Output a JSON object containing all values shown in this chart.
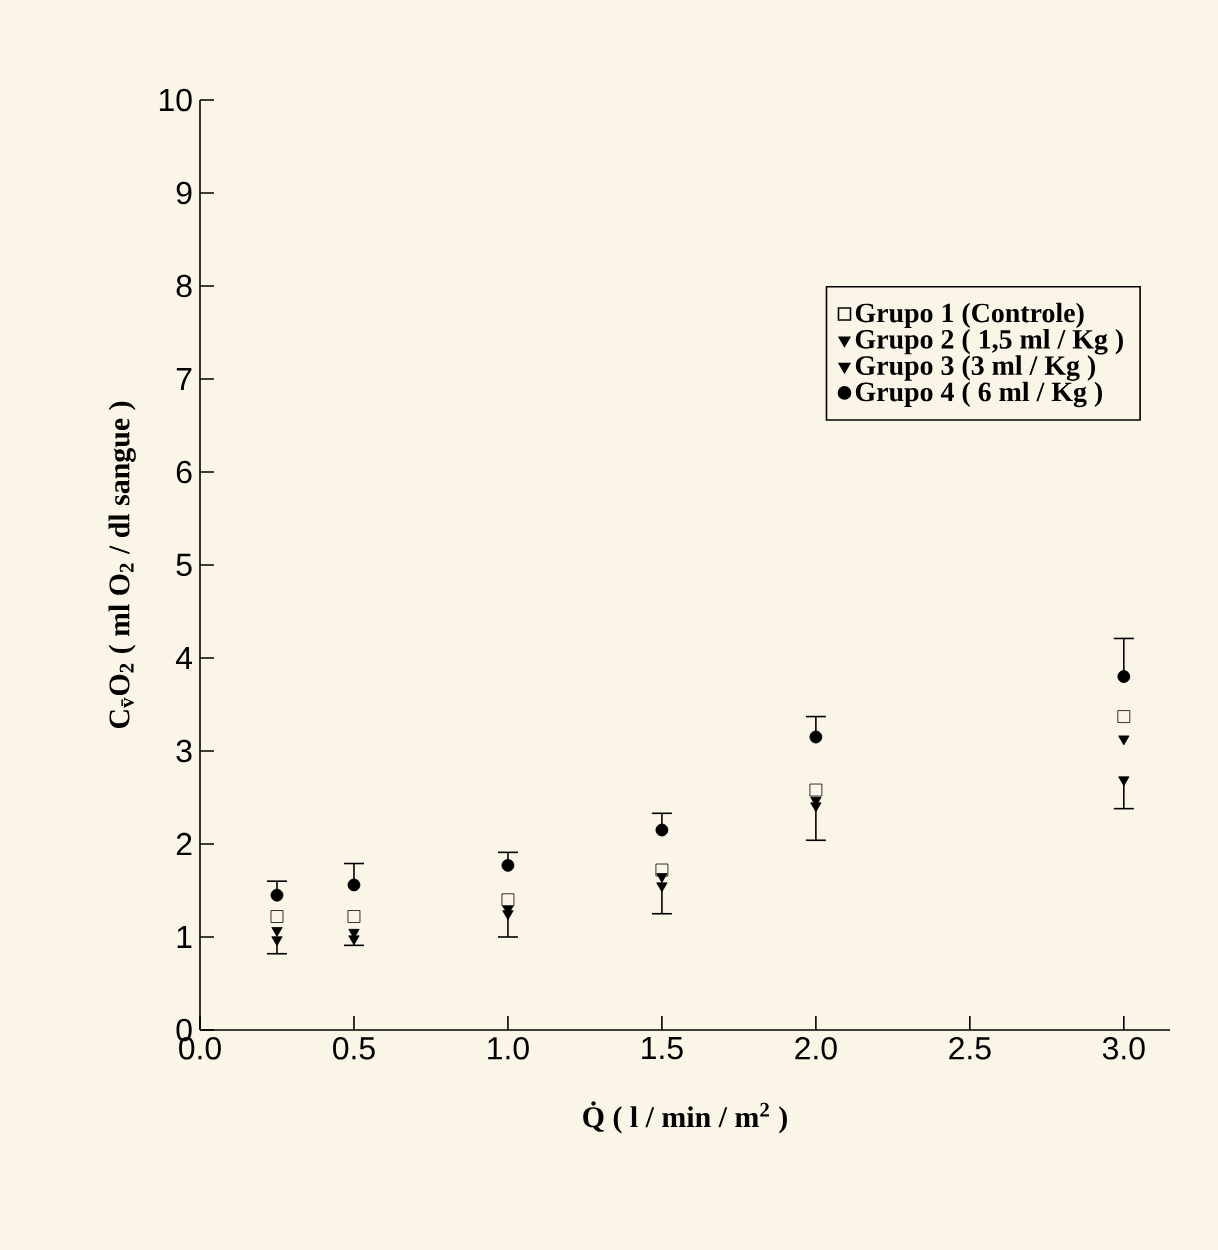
{
  "chart_data": {
    "type": "scatter",
    "xlabel": "Q̇ ( l / min / m$^{2}$ )",
    "ylabel": "C$_{v̄}$O$_{2}$ ( ml O$_{2}$ / dl sangue )",
    "x": [
      0.25,
      0.5,
      1.0,
      1.5,
      2.0,
      3.0
    ],
    "series": [
      {
        "name": "Grupo 1 (Controle)",
        "color": "#000000",
        "marker": "square",
        "values": [
          1.22,
          1.22,
          1.4,
          1.72,
          2.58,
          3.37
        ]
      },
      {
        "name": "Grupo 2 ( 1,5 ml / Kg )",
        "color": "#000000",
        "marker": "triangle",
        "values": [
          1.07,
          1.05,
          1.3,
          1.65,
          2.47,
          3.13
        ]
      },
      {
        "name": "Grupo 3 (3 ml / Kg )",
        "color": "#000000",
        "marker": "triangle",
        "values": [
          0.97,
          0.98,
          1.25,
          1.55,
          2.41,
          2.69
        ],
        "errors": [
          [
            0.82,
            0.97
          ],
          [
            0.91,
            0.98
          ],
          [
            1.0,
            1.25
          ],
          [
            1.25,
            1.55
          ],
          [
            2.04,
            2.41
          ],
          [
            2.38,
            2.69
          ]
        ]
      },
      {
        "name": "Grupo 4 ( 6 ml / Kg )",
        "color": "#000000",
        "marker": "circle",
        "values": [
          1.45,
          1.56,
          1.77,
          2.15,
          3.15,
          3.8
        ],
        "errors": [
          [
            1.45,
            1.6
          ],
          [
            1.56,
            1.79
          ],
          [
            1.77,
            1.91
          ],
          [
            2.15,
            2.33
          ],
          [
            3.15,
            3.37
          ],
          [
            3.8,
            4.21
          ]
        ]
      }
    ],
    "xlim": [
      0,
      3.15
    ],
    "ylim": [
      0,
      10
    ],
    "xticks": [
      {
        "value": 0,
        "label": "0.0"
      },
      0.5,
      {
        "value": 1,
        "label": "1.0"
      },
      1.5,
      {
        "value": 2,
        "label": "2.0"
      },
      2.5,
      {
        "value": 3,
        "label": "3.0"
      }
    ],
    "yticks": [
      0,
      1,
      2,
      3,
      4,
      5,
      6,
      7,
      8,
      9,
      10
    ],
    "legend": "top right",
    "grid": false
  }
}
